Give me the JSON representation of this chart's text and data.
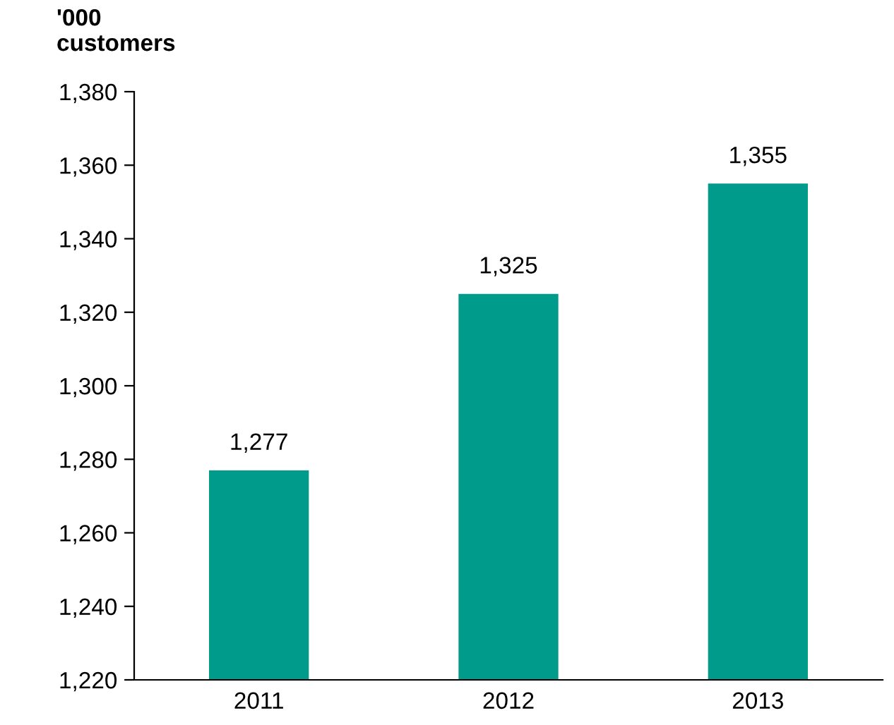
{
  "chart_data": {
    "type": "bar",
    "ylabel": "'000\ncustomers",
    "categories": [
      "2011",
      "2012",
      "2013"
    ],
    "values": [
      1277,
      1325,
      1355
    ],
    "color": "#009b8a",
    "ylim": [
      1220,
      1380
    ],
    "yticks": [
      {
        "value": 1220,
        "label": "1,220"
      },
      {
        "value": 1240,
        "label": "1,240"
      },
      {
        "value": 1260,
        "label": "1,260"
      },
      {
        "value": 1280,
        "label": "1,280"
      },
      {
        "value": 1300,
        "label": "1,300"
      },
      {
        "value": 1320,
        "label": "1,320"
      },
      {
        "value": 1340,
        "label": "1,340"
      },
      {
        "value": 1360,
        "label": "1,360"
      },
      {
        "value": 1380,
        "label": "1,380"
      }
    ],
    "value_labels": [
      "1,277",
      "1,325",
      "1,355"
    ],
    "grid": false,
    "legend": false
  }
}
